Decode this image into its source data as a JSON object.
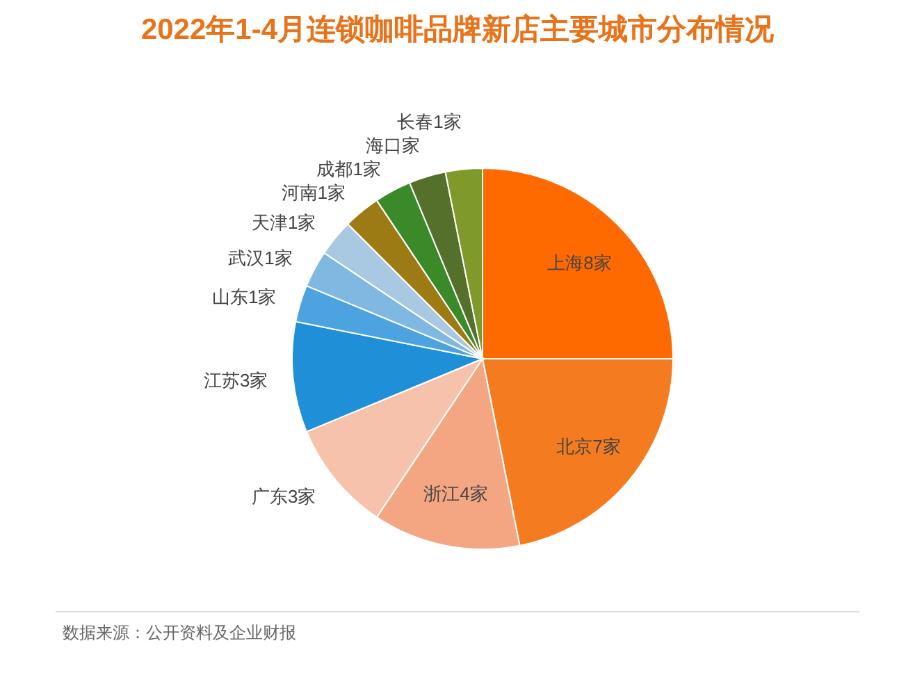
{
  "chart_data": {
    "type": "pie",
    "title": "2022年1-4月连锁咖啡品牌新店主要城市分布情况",
    "categories": [
      "上海",
      "北京",
      "浙江",
      "广东",
      "江苏",
      "山东",
      "武汉",
      "天津",
      "河南",
      "成都",
      "海口",
      "长春"
    ],
    "values": [
      8,
      7,
      4,
      3,
      3,
      1,
      1,
      1,
      1,
      1,
      1,
      1
    ],
    "value_labels": [
      "8家",
      "7家",
      "4家",
      "3家",
      "3家",
      "1家",
      "1家",
      "1家",
      "1家",
      "1家",
      "家",
      "1家"
    ],
    "colors": [
      "#ff6a00",
      "#f47b20",
      "#f4a582",
      "#f7c2ab",
      "#1f8fd8",
      "#4ca3df",
      "#7fb8e0",
      "#a9c9e2",
      "#9c7a14",
      "#3a8a2a",
      "#55702a",
      "#7f9a2a"
    ],
    "annotations": [
      "数据来源：公开资料及企业财报"
    ]
  }
}
